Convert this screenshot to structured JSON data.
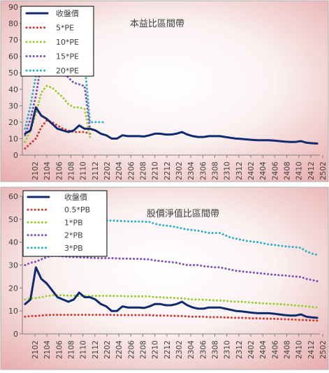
{
  "chart_data": [
    {
      "type": "line",
      "title": "本益比區間帶",
      "ylim": [
        0,
        90
      ],
      "yticks": [
        "0",
        "10",
        "20",
        "30",
        "40",
        "50",
        "60",
        "70",
        "80",
        "90"
      ],
      "grid": false,
      "legend_position": "top-left",
      "xtick_labels": [
        "2102",
        "2104",
        "2106",
        "2108",
        "2110",
        "2112",
        "2202",
        "2204",
        "2206",
        "2208",
        "2210",
        "2212",
        "2302",
        "2304",
        "2306",
        "2308",
        "2310",
        "2312",
        "2402",
        "2404",
        "2406",
        "2408",
        "2410",
        "2412",
        "2502"
      ],
      "series": [
        {
          "name": "收盤價",
          "color": "#102a6e",
          "dash": "solid",
          "width": 3,
          "values": [
            13,
            15,
            29,
            24,
            22,
            19,
            16,
            15,
            14,
            15,
            18,
            16,
            16,
            15,
            13,
            12,
            10,
            10,
            12,
            11.5,
            11.5,
            11.5,
            11.3,
            12,
            13,
            13,
            12.5,
            12.5,
            13,
            14,
            12.5,
            11.5,
            11,
            11,
            11.5,
            11.5,
            11.5,
            11,
            10.5,
            10,
            9.8,
            9.5,
            9.2,
            9,
            9,
            9,
            8.8,
            8.5,
            8.2,
            8,
            8,
            8.5,
            7.5,
            7.2,
            7
          ]
        },
        {
          "name": "5*PE",
          "color": "#d03a32",
          "dash": "dot",
          "width": 3,
          "values": [
            4,
            7,
            10,
            17,
            21,
            20,
            18,
            16,
            15,
            14,
            14,
            14,
            13,
            null
          ]
        },
        {
          "name": "10*PE",
          "color": "#9acd32",
          "dash": "dot",
          "width": 3,
          "values": [
            8,
            15,
            25,
            38,
            42,
            41,
            38,
            35,
            31,
            29,
            29,
            28,
            11,
            null
          ]
        },
        {
          "name": "15*PE",
          "color": "#7b50b8",
          "dash": "dot",
          "width": 3,
          "values": [
            12,
            22,
            36,
            56,
            62,
            60,
            56,
            52,
            47,
            44,
            43,
            42,
            16,
            null
          ]
        },
        {
          "name": "20*PE",
          "color": "#2eb0c8",
          "dash": "dot",
          "width": 3,
          "values": [
            16,
            30,
            48,
            74,
            84,
            82,
            76,
            70,
            62,
            58,
            57,
            56,
            20,
            20,
            20,
            20,
            null
          ]
        }
      ]
    },
    {
      "type": "line",
      "title": "股價淨值比區間帶",
      "ylim": [
        0,
        60
      ],
      "yticks": [
        "0",
        "10",
        "20",
        "30",
        "40",
        "50",
        "60"
      ],
      "grid": false,
      "legend_position": "top-left",
      "xtick_labels": [
        "2102",
        "2104",
        "2106",
        "2108",
        "2110",
        "2112",
        "2202",
        "2204",
        "2206",
        "2208",
        "2210",
        "2212",
        "2302",
        "2304",
        "2306",
        "2308",
        "2310",
        "2312",
        "2402",
        "2404",
        "2406",
        "2408",
        "2410",
        "2412",
        "2502"
      ],
      "series": [
        {
          "name": "收盤價",
          "color": "#102a6e",
          "dash": "solid",
          "width": 3,
          "values": [
            13,
            15,
            29,
            24,
            22,
            19,
            16,
            15,
            14,
            15,
            18,
            16,
            16,
            15,
            13,
            12,
            10,
            10,
            12,
            11.5,
            11.5,
            11.5,
            11.3,
            12,
            13,
            13,
            12.5,
            12.5,
            13,
            14,
            12.5,
            11.5,
            11,
            11,
            11.5,
            11.5,
            11.5,
            11,
            10.5,
            10,
            9.8,
            9.5,
            9.2,
            9,
            9,
            9,
            8.8,
            8.5,
            8.2,
            8,
            8,
            8.5,
            7.5,
            7.2,
            7
          ]
        },
        {
          "name": "0.5*PB",
          "color": "#d03a32",
          "dash": "dot",
          "width": 3,
          "values": [
            7.5,
            7.8,
            7.8,
            8,
            8.2,
            8.3,
            8.3,
            8.3,
            8.3,
            8.3,
            8.3,
            8.3,
            8.3,
            8.3,
            8.3,
            8.3,
            8.3,
            8.2,
            8.2,
            8.2,
            8.2,
            8.2,
            8.2,
            8.2,
            8,
            8,
            8,
            7.9,
            7.8,
            7.8,
            7.6,
            7.5,
            7.5,
            7.5,
            7.3,
            7.3,
            7.3,
            7.2,
            7.1,
            7,
            7,
            6.9,
            6.8,
            6.8,
            6.7,
            6.6,
            6.6,
            6.5,
            6.4,
            6.3,
            6.2,
            6.1,
            6,
            5.9,
            5.8
          ]
        },
        {
          "name": "1*PB",
          "color": "#9acd32",
          "dash": "dot",
          "width": 3,
          "values": [
            15,
            15.5,
            15.6,
            16,
            16.5,
            16.8,
            16.8,
            16.8,
            16.7,
            16.7,
            16.6,
            16.6,
            16.6,
            16.6,
            16.6,
            16.6,
            16.6,
            16.5,
            16.5,
            16.4,
            16.4,
            16.4,
            16.4,
            16.3,
            16,
            16,
            15.8,
            15.8,
            15.6,
            15.5,
            15.2,
            15,
            15,
            14.9,
            14.8,
            14.6,
            14.6,
            14.4,
            14.2,
            14,
            14,
            13.8,
            13.6,
            13.5,
            13.3,
            13.2,
            13.1,
            13,
            12.8,
            12.6,
            12.4,
            12.2,
            12,
            11.8,
            11.5
          ]
        },
        {
          "name": "2*PB",
          "color": "#7b50b8",
          "dash": "dot",
          "width": 3,
          "values": [
            30,
            31,
            31.5,
            32.5,
            33.5,
            34,
            34,
            33.8,
            33.6,
            33.5,
            33.4,
            33.3,
            33.2,
            33.1,
            33,
            33,
            33,
            32.9,
            32.8,
            32.8,
            32.7,
            32.7,
            32.6,
            32.5,
            32,
            31.8,
            31.5,
            31.3,
            31,
            30.5,
            30,
            30,
            30,
            29.5,
            29.3,
            29,
            29,
            28.5,
            28,
            27.5,
            27.3,
            27,
            26.8,
            26.5,
            26.3,
            26,
            25.8,
            25.6,
            25.5,
            25.2,
            25,
            24.8,
            24,
            23.5,
            23
          ]
        },
        {
          "name": "3*PB",
          "color": "#2eb0c8",
          "dash": "dot",
          "width": 3,
          "values": [
            45,
            46.5,
            47,
            48.5,
            50,
            51,
            51,
            50.7,
            50.4,
            50.2,
            50,
            49.9,
            49.8,
            49.6,
            49.5,
            49.5,
            49.4,
            49.3,
            49.2,
            49.1,
            49,
            49,
            48.9,
            48.8,
            48,
            47.5,
            47.2,
            47,
            46.5,
            46,
            45.5,
            45.3,
            45,
            44.5,
            44,
            44,
            44,
            43,
            42,
            41.5,
            41,
            40.5,
            40.2,
            40,
            39.5,
            39,
            38.8,
            38.5,
            38.2,
            38,
            37.8,
            37.5,
            36,
            35,
            34.5
          ]
        }
      ]
    }
  ]
}
